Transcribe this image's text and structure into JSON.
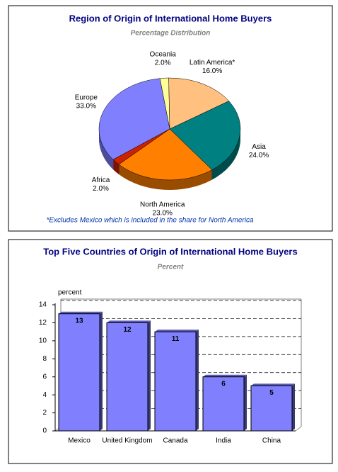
{
  "chart_data": [
    {
      "type": "pie",
      "title": "Region of Origin of International Home Buyers",
      "subtitle": "Percentage Distribution",
      "note": "*Excludes Mexico which is included in the share for North America",
      "categories": [
        "Oceania",
        "Latin America*",
        "Asia",
        "North America",
        "Africa",
        "Europe"
      ],
      "values": [
        2,
        16,
        24,
        23,
        2,
        33
      ],
      "value_labels": [
        "2.0%",
        "16.0%",
        "24.0%",
        "23.0%",
        "2.0%",
        "33.0%"
      ],
      "colors": [
        "#ffff99",
        "#ffc080",
        "#008080",
        "#ff8000",
        "#cc2200",
        "#8080ff"
      ]
    },
    {
      "type": "bar",
      "title": "Top Five Countries of Origin of International Home Buyers",
      "subtitle": "Percent",
      "y_label": "percent",
      "categories": [
        "Mexico",
        "United Kingdom",
        "Canada",
        "India",
        "China"
      ],
      "values": [
        13,
        12,
        11,
        6,
        5
      ],
      "color": "#8080ff",
      "ylim": [
        0,
        14
      ],
      "yticks": [
        0,
        2,
        4,
        6,
        8,
        10,
        12,
        14
      ],
      "grid": true
    }
  ]
}
